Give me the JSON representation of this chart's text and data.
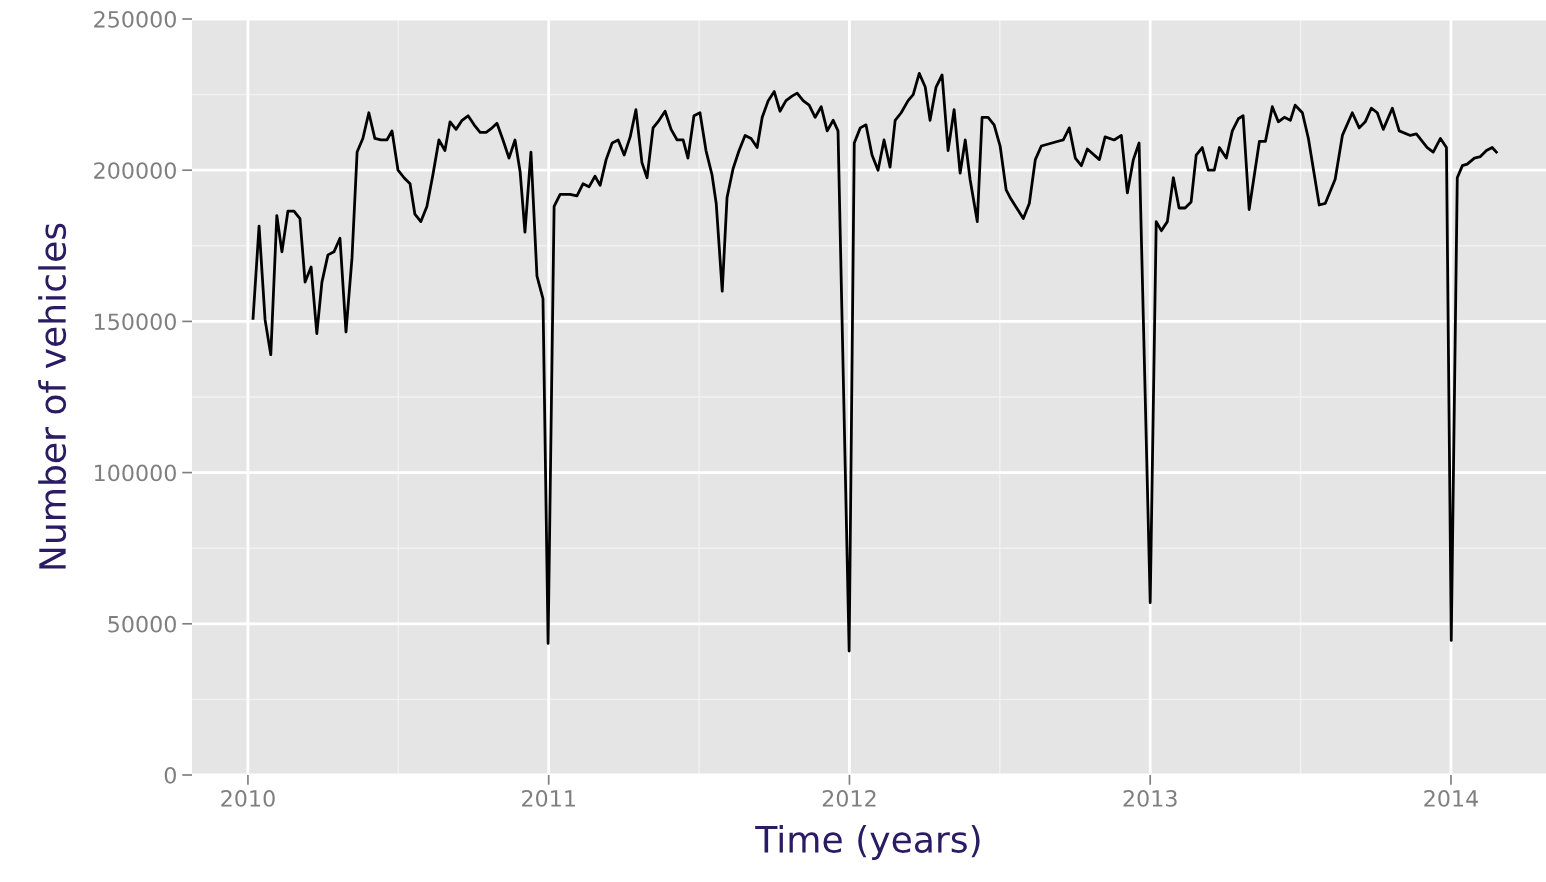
{
  "chart_data": {
    "type": "line",
    "xlabel": "Time (years)",
    "ylabel": "Number of vehicles",
    "x": [
      2010.017,
      2010.037,
      2010.057,
      2010.076,
      2010.096,
      2010.113,
      2010.133,
      2010.153,
      2010.173,
      2010.19,
      2010.21,
      2010.229,
      2010.246,
      2010.266,
      2010.286,
      2010.306,
      2010.326,
      2010.346,
      2010.363,
      2010.382,
      2010.402,
      2010.422,
      2010.442,
      2010.462,
      2010.479,
      2010.499,
      2010.519,
      2010.539,
      2010.555,
      2010.575,
      2010.595,
      2010.615,
      2010.635,
      2010.655,
      2010.672,
      2010.692,
      2010.712,
      2010.732,
      2010.752,
      2010.772,
      2010.792,
      2010.812,
      2010.828,
      2010.848,
      2010.868,
      2010.888,
      2010.905,
      2010.921,
      2010.941,
      2010.961,
      2010.981,
      2010.998,
      2011.018,
      2011.038,
      2011.071,
      2011.094,
      2011.114,
      2011.134,
      2011.154,
      2011.171,
      2011.191,
      2011.211,
      2011.231,
      2011.251,
      2011.271,
      2011.29,
      2011.31,
      2011.327,
      2011.347,
      2011.367,
      2011.387,
      2011.407,
      2011.427,
      2011.447,
      2011.463,
      2011.483,
      2011.503,
      2011.523,
      2011.543,
      2011.557,
      2011.577,
      2011.593,
      2011.613,
      2011.633,
      2011.653,
      2011.673,
      2011.693,
      2011.71,
      2011.73,
      2011.75,
      2011.769,
      2011.789,
      2011.809,
      2011.826,
      2011.846,
      2011.866,
      2011.886,
      2011.906,
      2011.926,
      2011.946,
      2011.962,
      2011.999,
      2012.016,
      2012.036,
      2012.055,
      2012.075,
      2012.095,
      2012.115,
      2012.135,
      2012.152,
      2012.172,
      2012.195,
      2012.212,
      2012.232,
      2012.252,
      2012.268,
      2012.288,
      2012.308,
      2012.328,
      2012.348,
      2012.368,
      2012.385,
      2012.401,
      2012.425,
      2012.441,
      2012.461,
      2012.481,
      2012.501,
      2012.521,
      2012.534,
      2012.578,
      2012.598,
      2012.618,
      2012.638,
      2012.691,
      2012.711,
      2012.731,
      2012.751,
      2012.771,
      2012.791,
      2012.831,
      2012.85,
      2012.88,
      2012.904,
      2012.924,
      2012.944,
      2012.963,
      2013.0,
      2013.02,
      2013.037,
      2013.057,
      2013.077,
      2013.096,
      2013.116,
      2013.136,
      2013.153,
      2013.173,
      2013.193,
      2013.213,
      2013.23,
      2013.253,
      2013.273,
      2013.293,
      2013.309,
      2013.329,
      2013.363,
      2013.383,
      2013.406,
      2013.426,
      2013.446,
      2013.466,
      2013.482,
      2013.506,
      2013.526,
      2013.562,
      2013.582,
      2013.615,
      2013.639,
      2013.672,
      2013.695,
      2013.715,
      2013.735,
      2013.755,
      2013.775,
      2013.805,
      2013.828,
      2013.865,
      2013.885,
      2013.921,
      2013.941,
      2013.965,
      2013.985,
      2014.001,
      2014.021,
      2014.038,
      2014.054,
      2014.078,
      2014.098,
      2014.118,
      2014.137,
      2014.151
    ],
    "series": [
      {
        "color": "#000000",
        "values": [
          151000,
          181500,
          150500,
          139000,
          185000,
          173000,
          186500,
          186500,
          184000,
          163000,
          168000,
          146000,
          163000,
          172000,
          173000,
          177500,
          146500,
          171000,
          206000,
          210500,
          219000,
          210500,
          210000,
          210000,
          213000,
          200000,
          197500,
          195500,
          185500,
          183000,
          188000,
          198500,
          210000,
          206500,
          216000,
          213500,
          216500,
          218000,
          215000,
          212500,
          212500,
          214000,
          215500,
          210000,
          204000,
          210000,
          199500,
          179500,
          206000,
          165000,
          157500,
          43500,
          188000,
          192000,
          192000,
          191500,
          195500,
          194500,
          198000,
          195000,
          203500,
          209000,
          210000,
          205000,
          211000,
          220000,
          202500,
          197500,
          214000,
          216500,
          219500,
          213500,
          210000,
          210000,
          204000,
          218000,
          219000,
          206500,
          198500,
          189000,
          160000,
          191000,
          200500,
          206500,
          211500,
          210500,
          207500,
          217500,
          223000,
          226000,
          219500,
          223000,
          224500,
          225500,
          223000,
          221500,
          217500,
          221000,
          213000,
          216500,
          213000,
          41000,
          209000,
          214000,
          215000,
          205000,
          200000,
          210000,
          201000,
          216500,
          219000,
          223000,
          225000,
          232000,
          227500,
          216500,
          227500,
          231500,
          206500,
          220000,
          199000,
          210000,
          197000,
          183000,
          217500,
          217500,
          215000,
          208000,
          193500,
          191000,
          184000,
          189000,
          203500,
          208000,
          209500,
          210000,
          214000,
          204000,
          201500,
          207000,
          203500,
          211000,
          210000,
          211500,
          192500,
          203500,
          209000,
          57000,
          183000,
          180000,
          183000,
          197500,
          187500,
          187500,
          189500,
          205000,
          207500,
          200000,
          200000,
          207500,
          204000,
          213000,
          217000,
          218000,
          187000,
          209500,
          209500,
          221000,
          216000,
          217500,
          216500,
          221500,
          219000,
          210500,
          188500,
          189000,
          197000,
          211500,
          219000,
          214000,
          216000,
          220500,
          219000,
          213500,
          220500,
          213000,
          211500,
          212000,
          207500,
          206000,
          210500,
          207500,
          44500,
          197500,
          201500,
          202000,
          204000,
          204500,
          206500,
          207500,
          206000
        ]
      }
    ],
    "xlim": [
      2009.814,
      2014.316
    ],
    "xticks": [
      2010,
      2011,
      2012,
      2013,
      2014
    ],
    "ylim": [
      0,
      250000
    ],
    "yticks": [
      0,
      50000,
      100000,
      150000,
      200000,
      250000
    ],
    "grid": true,
    "line_style": "solid"
  }
}
